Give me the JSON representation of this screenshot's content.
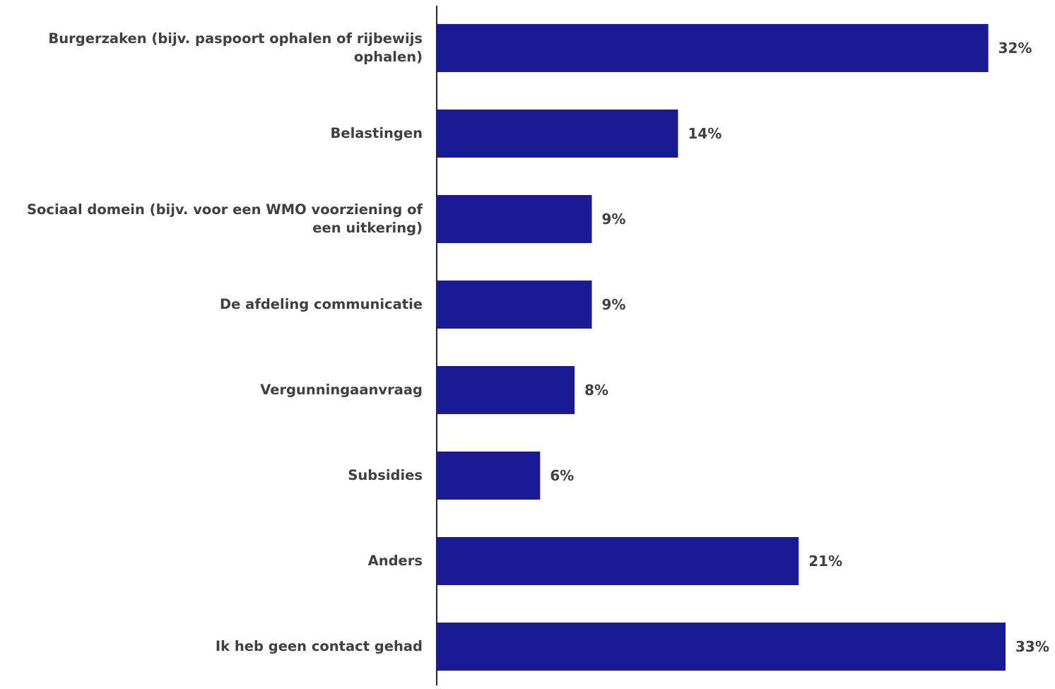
{
  "chart_data": {
    "type": "bar",
    "orientation": "horizontal",
    "categories": [
      "Burgerzaken (bijv. paspoort ophalen of rijbewijs ophalen)",
      "Belastingen",
      "Sociaal domein (bijv. voor een WMO voorziening of een uitkering)",
      "De afdeling communicatie",
      "Vergunningaanvraag",
      "Subsidies",
      "Anders",
      "Ik heb geen contact gehad"
    ],
    "values": [
      32,
      14,
      9,
      9,
      8,
      6,
      21,
      33
    ],
    "value_labels": [
      "32%",
      "14%",
      "9%",
      "9%",
      "8%",
      "6%",
      "21%",
      "33%"
    ],
    "unit": "%",
    "xlim": [
      0,
      33
    ],
    "grid": false,
    "colors": {
      "bar": "#1a1a94",
      "axis": "#1a1a94",
      "text": "#404040"
    }
  }
}
